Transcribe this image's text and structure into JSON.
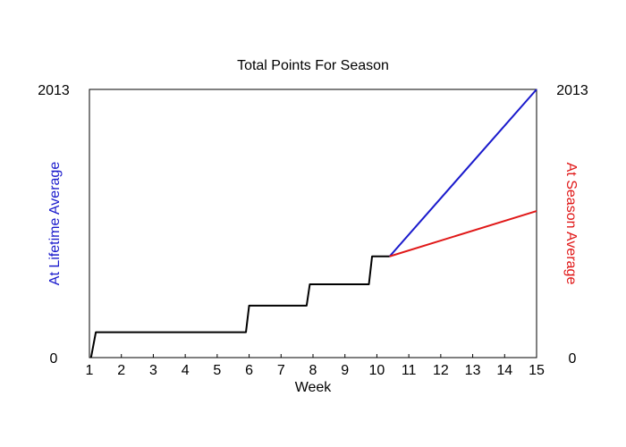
{
  "chart_data": {
    "type": "line",
    "title": "Total Points For Season",
    "xlabel": "Week",
    "ylabel_left": "At Lifetime Average",
    "ylabel_right": "At Season Average",
    "xlim": [
      1,
      15
    ],
    "ylim": [
      0,
      2013
    ],
    "x_ticks": [
      1,
      2,
      3,
      4,
      5,
      6,
      7,
      8,
      9,
      10,
      11,
      12,
      13,
      14,
      15
    ],
    "y_left_ticks": [
      "0",
      "2013"
    ],
    "y_right_ticks": [
      "0",
      "2013"
    ],
    "grid": false,
    "colors": {
      "actual": "#000000",
      "lifetime": "#1a1acc",
      "season": "#e01818"
    },
    "series": [
      {
        "key": "actual",
        "x": [
          1.05,
          1.2,
          5.9,
          6.0,
          7.8,
          7.9,
          9.75,
          9.85,
          10.4
        ],
        "y": [
          0,
          190,
          190,
          390,
          390,
          550,
          550,
          760,
          760
        ]
      },
      {
        "key": "lifetime",
        "x": [
          10.4,
          15
        ],
        "y": [
          760,
          2013
        ]
      },
      {
        "key": "season",
        "x": [
          10.4,
          15
        ],
        "y": [
          760,
          1100
        ]
      }
    ]
  }
}
